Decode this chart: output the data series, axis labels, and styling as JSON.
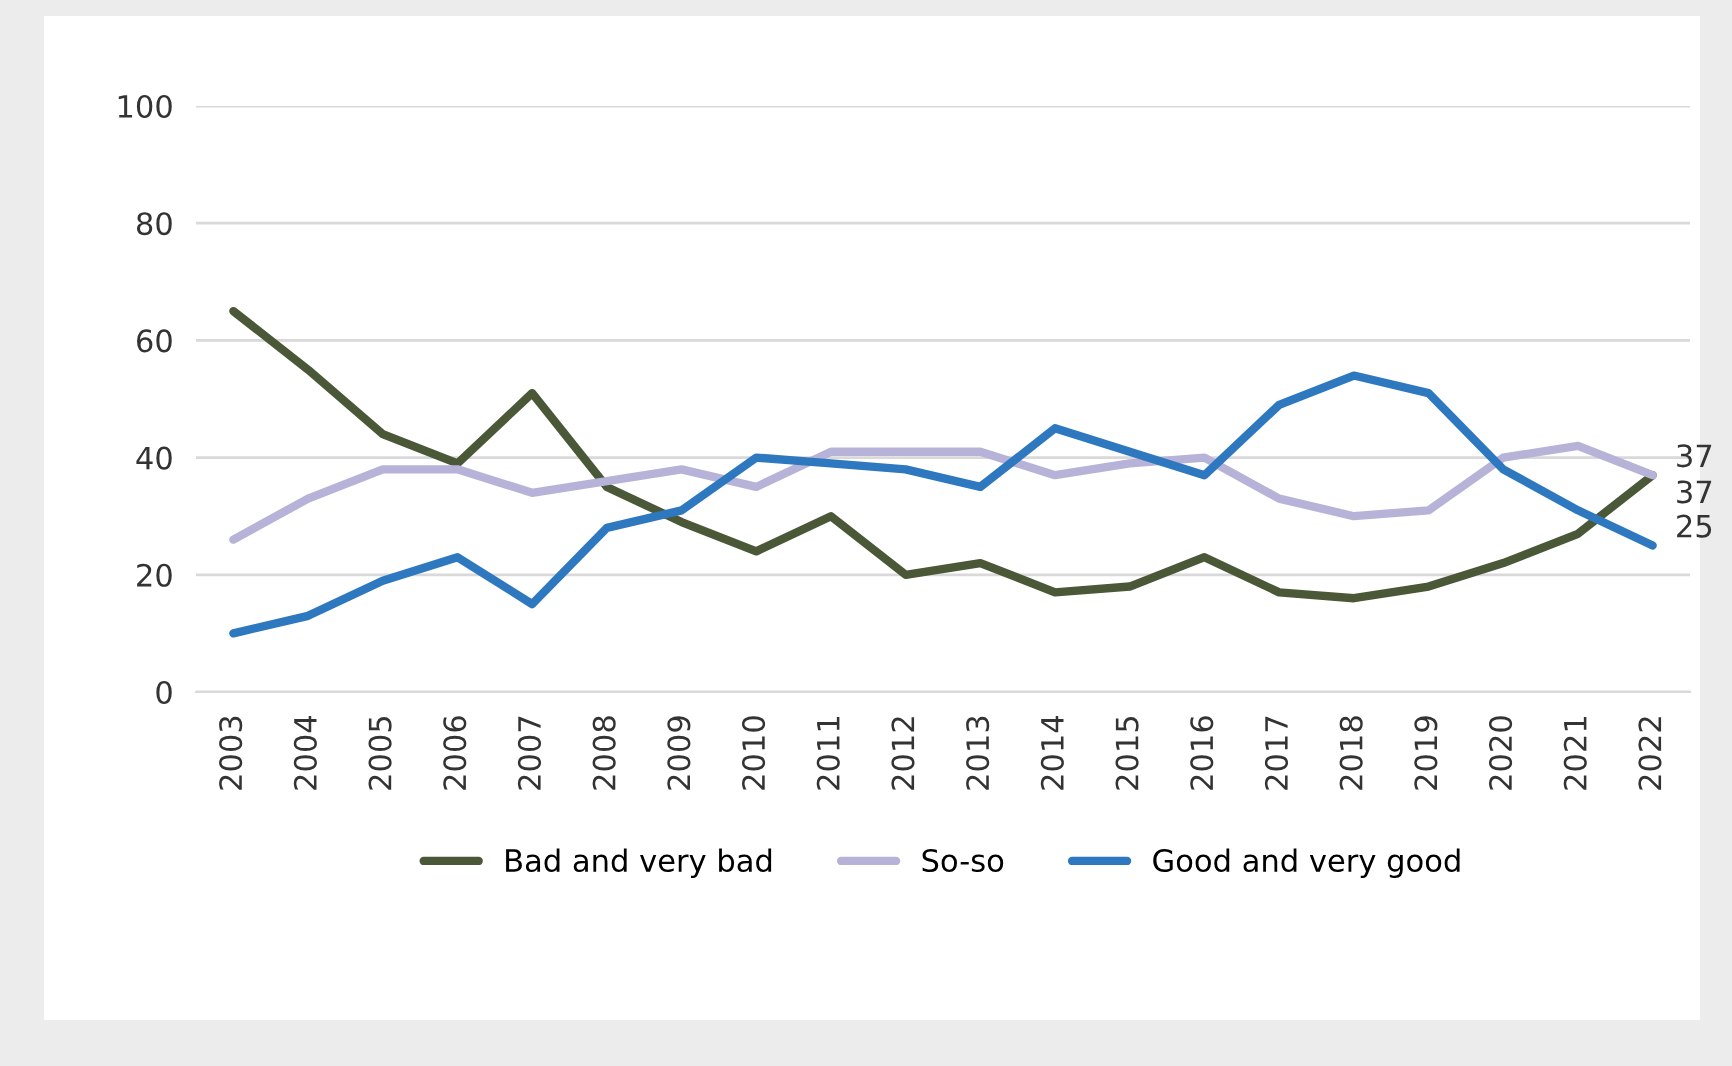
{
  "chart_data": {
    "type": "line",
    "categories": [
      "2003",
      "2004",
      "2005",
      "2006",
      "2007",
      "2008",
      "2009",
      "2010",
      "2011",
      "2012",
      "2013",
      "2014",
      "2015",
      "2016",
      "2017",
      "2018",
      "2019",
      "2020",
      "2021",
      "2022"
    ],
    "series": [
      {
        "name": "Bad and very bad",
        "color": "#4b5838",
        "values": [
          65,
          55,
          44,
          39,
          51,
          35,
          29,
          24,
          30,
          20,
          22,
          17,
          18,
          23,
          17,
          16,
          18,
          22,
          27,
          37
        ]
      },
      {
        "name": "So-so",
        "color": "#b7b3d8",
        "values": [
          26,
          33,
          38,
          38,
          34,
          36,
          38,
          35,
          41,
          41,
          41,
          37,
          39,
          40,
          33,
          30,
          31,
          40,
          42,
          37
        ]
      },
      {
        "name": "Good and very good",
        "color": "#2e78c0",
        "values": [
          10,
          13,
          19,
          23,
          15,
          28,
          31,
          40,
          39,
          38,
          35,
          45,
          41,
          37,
          49,
          54,
          51,
          38,
          31,
          25
        ]
      }
    ],
    "ylim": [
      0,
      100
    ],
    "yticks": [
      0,
      20,
      40,
      60,
      80,
      100
    ],
    "grid": "y",
    "legend": "bottom",
    "marker": "none",
    "line_style": "solid",
    "annotations": [
      {
        "text": "37",
        "x": "2022",
        "y": 37
      },
      {
        "text": "37",
        "x": "2022",
        "y": 37
      },
      {
        "text": "25",
        "x": "2022",
        "y": 25
      }
    ]
  }
}
